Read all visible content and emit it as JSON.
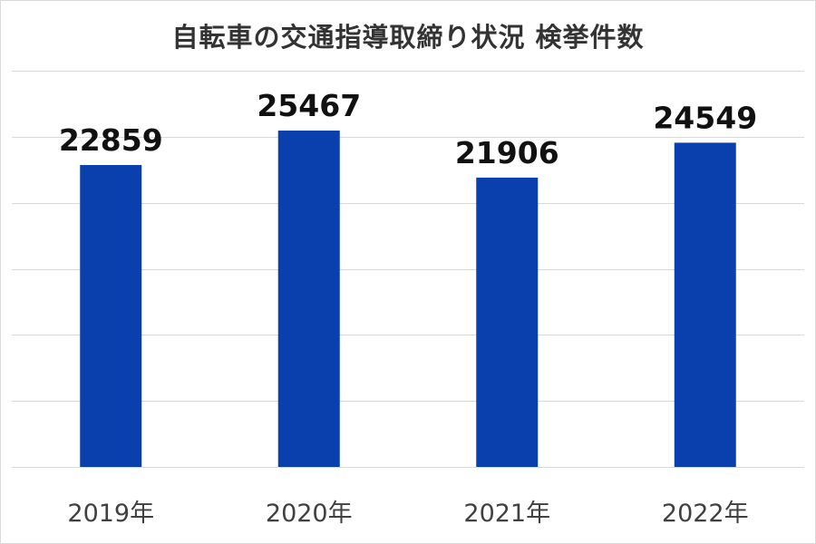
{
  "chart_data": {
    "type": "bar",
    "title": "自転車の交通指導取締り状況 検挙件数",
    "categories": [
      "2019年",
      "2020年",
      "2021年",
      "2022年"
    ],
    "series": [
      {
        "values": [
          22859,
          25467,
          21906,
          24549
        ]
      }
    ],
    "ylim": [
      0,
      30000
    ],
    "grid": true,
    "bar_color": "#0a3fae",
    "data_labels": true
  }
}
